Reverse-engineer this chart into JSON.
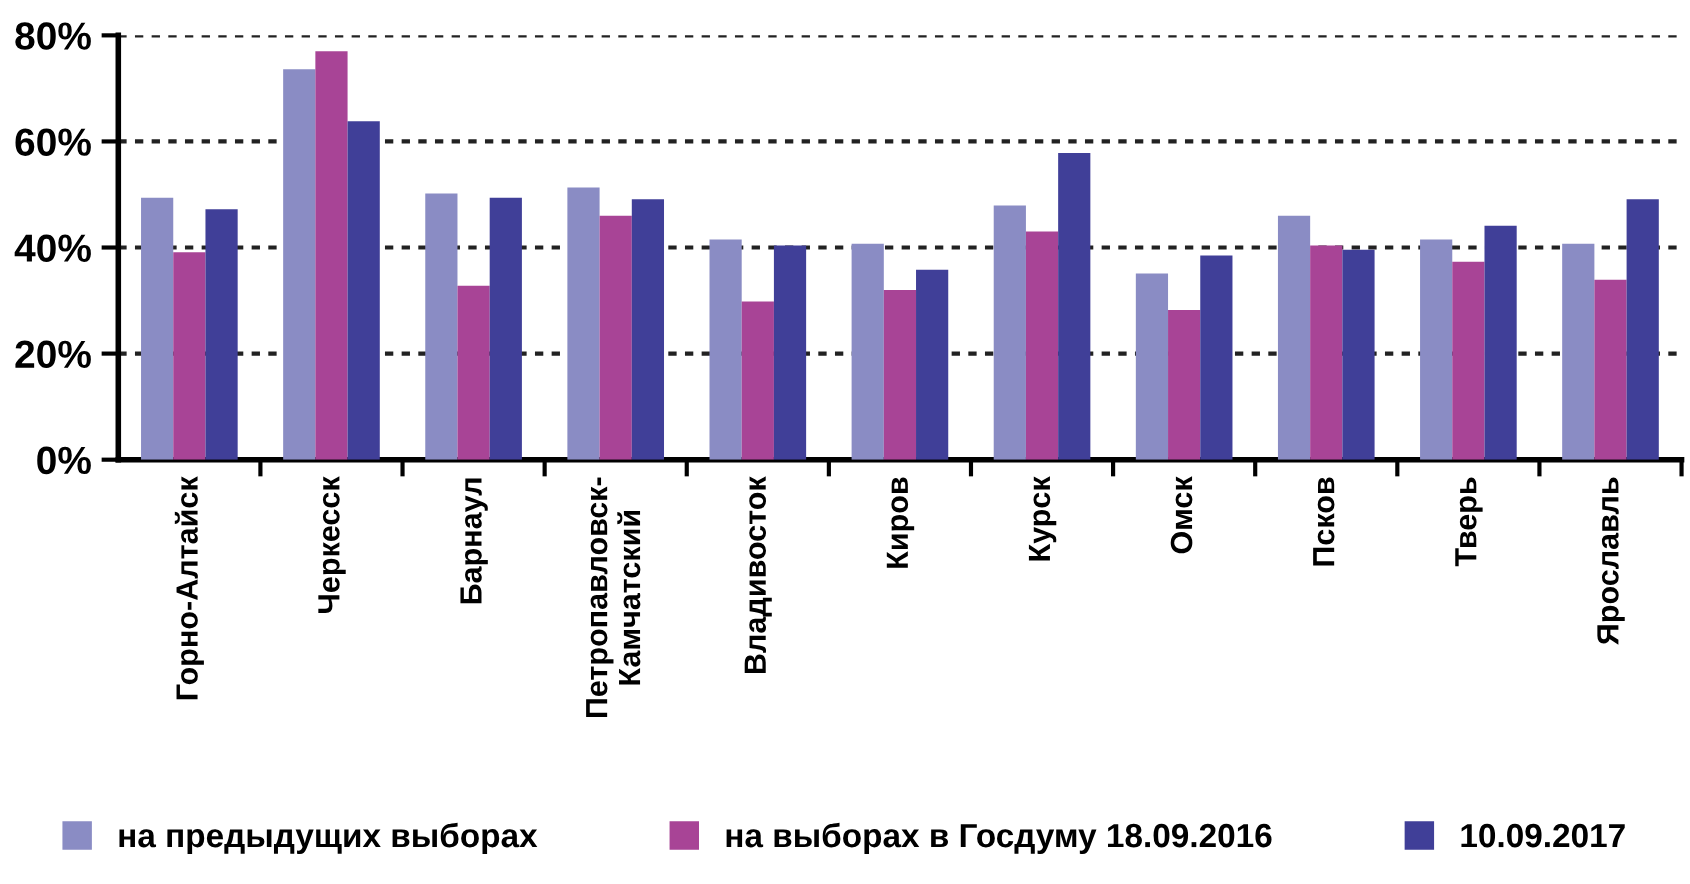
{
  "chart_data": {
    "type": "bar",
    "categories": [
      "Горно-Алтайск",
      "Черкесск",
      "Барнаул",
      "Петропавловск-\nКамчатский",
      "Владивосток",
      "Киров",
      "Курск",
      "Омск",
      "Псков",
      "Тверь",
      "Ярославль"
    ],
    "series": [
      {
        "name": "на предыдущих выборах",
        "color": "#8a8cc4",
        "values": [
          49.4,
          73.6,
          50.2,
          51.3,
          41.5,
          40.7,
          47.9,
          35.1,
          46.0,
          41.5,
          40.7
        ]
      },
      {
        "name": "на выборах в Госдуму 18.09.2016",
        "color": "#a84496",
        "values": [
          39.1,
          77.0,
          32.8,
          46.0,
          29.8,
          32.0,
          43.0,
          28.2,
          40.4,
          37.3,
          33.9
        ]
      },
      {
        "name": "10.09.2017",
        "color": "#403f98",
        "values": [
          47.2,
          63.8,
          49.4,
          49.1,
          40.4,
          35.8,
          57.8,
          38.5,
          39.6,
          44.1,
          49.1
        ]
      }
    ],
    "ylim": [
      0,
      80
    ],
    "yticks": [
      {
        "value": 0,
        "label": "0%"
      },
      {
        "value": 20,
        "label": "20%"
      },
      {
        "value": 40,
        "label": "40%"
      },
      {
        "value": 60,
        "label": "60%"
      },
      {
        "value": 80,
        "label": "80%"
      }
    ],
    "grid": "y",
    "legend": "bottom"
  }
}
